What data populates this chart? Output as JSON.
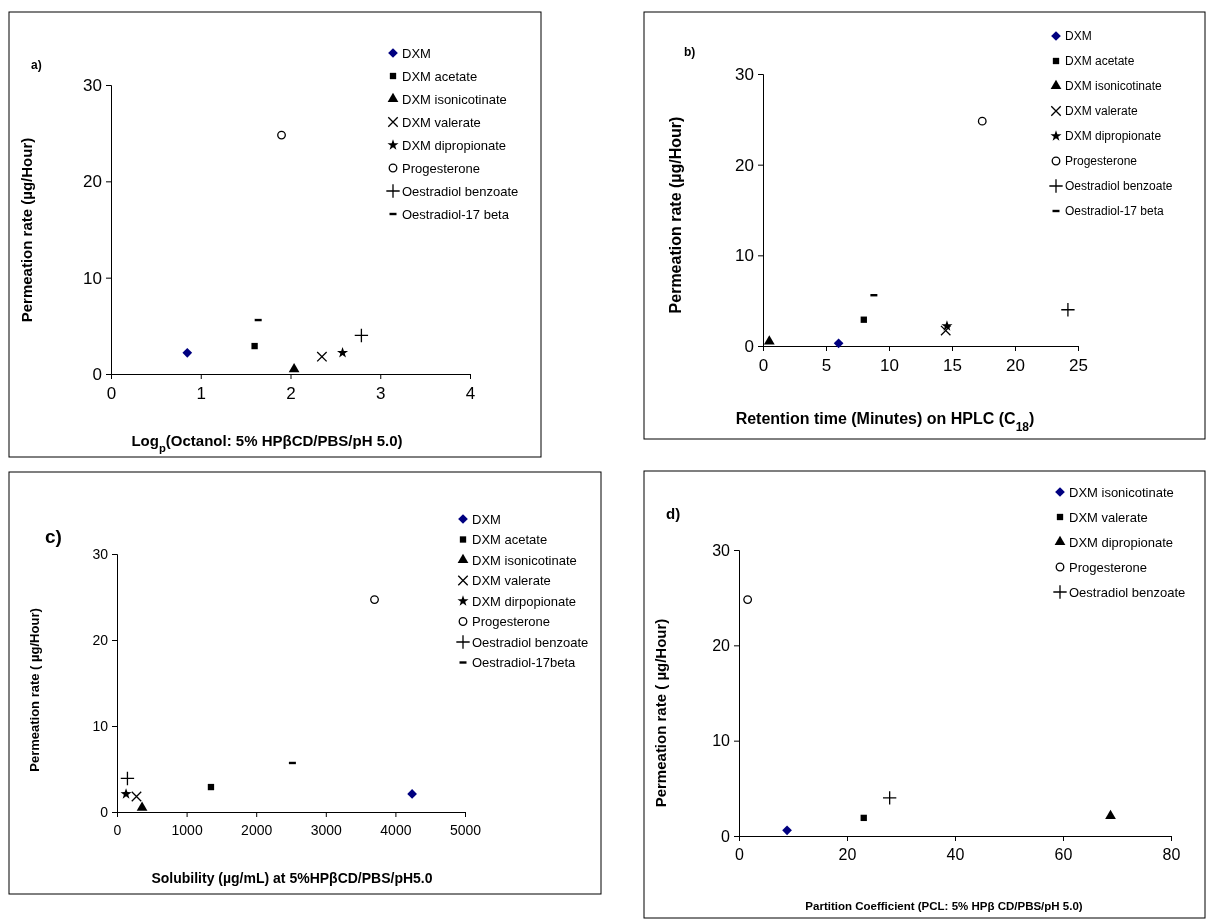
{
  "chart_data": [
    {
      "type": "scatter",
      "title": "a)",
      "xlabel": "Log$_{p}$(Octanol: 5% HPβCD/PBS/pH 5.0)",
      "ylabel": "Permeation rate (µg/Hour)",
      "xlim": [
        0,
        4
      ],
      "xticks": [
        0,
        1,
        2,
        3,
        4
      ],
      "ylim": [
        0,
        30
      ],
      "yticks": [
        0,
        10,
        20,
        30
      ],
      "grid": false,
      "legend": "top right",
      "series": [
        {
          "name": "DXM",
          "color": "#000080",
          "marker": "diamond",
          "x": [
            0.85
          ],
          "values": [
            2.2
          ]
        },
        {
          "name": "DXM acetate",
          "color": "#000000",
          "marker": "square",
          "x": [
            1.6
          ],
          "values": [
            2.9
          ]
        },
        {
          "name": "DXM isonicotinate",
          "color": "#000000",
          "marker": "triangle",
          "x": [
            2.04
          ],
          "values": [
            0.5
          ]
        },
        {
          "name": "DXM valerate",
          "color": "#000000",
          "marker": "cross",
          "x": [
            2.35
          ],
          "values": [
            1.8
          ]
        },
        {
          "name": "DXM dipropionate",
          "color": "#000000",
          "marker": "star",
          "x": [
            2.58
          ],
          "values": [
            2.2
          ]
        },
        {
          "name": "Progesterone",
          "color": "#000000",
          "marker": "circle",
          "x": [
            1.9
          ],
          "values": [
            24.8
          ]
        },
        {
          "name": "Oestradiol benzoate",
          "color": "#000000",
          "marker": "plus",
          "x": [
            2.79
          ],
          "values": [
            4.0
          ]
        },
        {
          "name": "Oestradiol-17 beta",
          "color": "#000000",
          "x": [
            1.64
          ],
          "values": [
            5.6
          ]
        }
      ]
    },
    {
      "type": "scatter",
      "title": "b)",
      "xlabel": "Retention time (Minutes) on HPLC (C$_{18}$)",
      "ylabel": "Permeation rate (µg/Hour)",
      "xlim": [
        0,
        25
      ],
      "xticks": [
        0,
        5,
        10,
        15,
        20,
        25
      ],
      "ylim": [
        0,
        30
      ],
      "yticks": [
        0,
        10,
        20,
        30
      ],
      "grid": false,
      "legend": "top right",
      "series": [
        {
          "name": "DXM",
          "color": "#000080",
          "marker": "diamond",
          "x": [
            6.0
          ],
          "values": [
            0.3
          ]
        },
        {
          "name": "DXM acetate",
          "color": "#000000",
          "marker": "square",
          "x": [
            8.0
          ],
          "values": [
            2.9
          ]
        },
        {
          "name": "DXM isonicotinate",
          "color": "#000000",
          "marker": "triangle",
          "x": [
            0.5
          ],
          "values": [
            0.5
          ]
        },
        {
          "name": "DXM valerate",
          "color": "#000000",
          "marker": "cross",
          "x": [
            14.5
          ],
          "values": [
            1.7
          ]
        },
        {
          "name": "DXM dipropionate",
          "color": "#000000",
          "marker": "star",
          "x": [
            14.6
          ],
          "values": [
            2.2
          ]
        },
        {
          "name": "Progesterone",
          "color": "#000000",
          "marker": "circle",
          "x": [
            17.4
          ],
          "values": [
            24.8
          ]
        },
        {
          "name": "Oestradiol benzoate",
          "color": "#000000",
          "marker": "plus",
          "x": [
            24.2
          ],
          "values": [
            4.0
          ]
        },
        {
          "name": "Oestradiol-17 beta",
          "color": "#000000",
          "x": [
            8.8
          ],
          "values": [
            5.6
          ]
        }
      ]
    },
    {
      "type": "scatter",
      "title": "c)",
      "xlabel": "Solubility (µg/mL) at 5%HPβCD/PBS/pH5.0",
      "ylabel": "Permeation rate ( µg/Hour)",
      "xlim": [
        0,
        5000
      ],
      "xticks": [
        0,
        1000,
        2000,
        3000,
        4000,
        5000
      ],
      "ylim": [
        0,
        30
      ],
      "yticks": [
        0,
        10,
        20,
        30
      ],
      "grid": false,
      "legend": "top right",
      "series": [
        {
          "name": "DXM",
          "color": "#000080",
          "marker": "diamond",
          "x": [
            4240
          ],
          "values": [
            2.1
          ]
        },
        {
          "name": "DXM acetate",
          "color": "#000000",
          "marker": "square",
          "x": [
            1350
          ],
          "values": [
            2.9
          ]
        },
        {
          "name": "DXM isonicotinate",
          "color": "#000000",
          "marker": "triangle",
          "x": [
            360
          ],
          "values": [
            0.5
          ]
        },
        {
          "name": "DXM valerate",
          "color": "#000000",
          "marker": "cross",
          "x": [
            280
          ],
          "values": [
            1.8
          ]
        },
        {
          "name": "DXM dirpopionate",
          "color": "#000000",
          "marker": "star",
          "x": [
            130
          ],
          "values": [
            2.1
          ]
        },
        {
          "name": "Progesterone",
          "color": "#000000",
          "marker": "circle",
          "x": [
            3700
          ],
          "values": [
            24.7
          ]
        },
        {
          "name": "Oestradiol benzoate",
          "color": "#000000",
          "marker": "plus",
          "x": [
            150
          ],
          "values": [
            3.9
          ]
        },
        {
          "name": "Oestradiol-17beta",
          "color": "#000000",
          "x": [
            2520
          ],
          "values": [
            5.7
          ]
        }
      ]
    },
    {
      "type": "scatter",
      "title": "d)",
      "xlabel": "Partition Coefficient (PCL: 5% HPβ CD/PBS/pH 5.0)",
      "ylabel": "Permeation rate (  µg/Hour)",
      "xlim": [
        0,
        80
      ],
      "xticks": [
        0,
        20,
        40,
        60,
        80
      ],
      "ylim": [
        0,
        30
      ],
      "yticks": [
        0,
        10,
        20,
        30
      ],
      "grid": false,
      "legend": "top right",
      "series": [
        {
          "name": "DXM isonicotinate",
          "color": "#000080",
          "marker": "diamond",
          "x": [
            8.9
          ],
          "values": [
            0.6
          ]
        },
        {
          "name": "DXM valerate",
          "color": "#000000",
          "marker": "square",
          "x": [
            23.1
          ],
          "values": [
            1.9
          ]
        },
        {
          "name": "DXM dipropionate",
          "color": "#000000",
          "marker": "triangle",
          "x": [
            68.8
          ],
          "values": [
            2.1
          ]
        },
        {
          "name": "Progesterone",
          "color": "#000000",
          "marker": "circle",
          "x": [
            1.6
          ],
          "values": [
            24.8
          ]
        },
        {
          "name": "Oestradiol benzoate",
          "color": "#000000",
          "marker": "plus",
          "x": [
            27.9
          ],
          "values": [
            4.0
          ]
        }
      ]
    }
  ]
}
